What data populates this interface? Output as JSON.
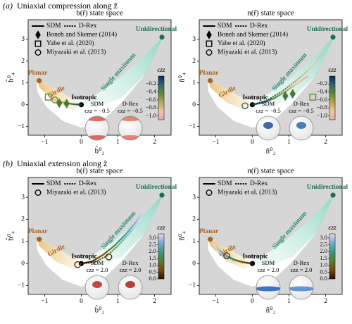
{
  "sections": [
    {
      "label": "(a)",
      "title": "Uniaxial compression along ẑ"
    },
    {
      "label": "(b)",
      "title": "Uniaxial extension along ẑ"
    }
  ],
  "chart_data": [
    {
      "type": "line",
      "title": "b(r̂) state space",
      "xlabel": "b̂⁰₂",
      "ylabel": "b̂⁰₄",
      "xlim": [
        -1.45,
        2.45
      ],
      "ylim": [
        -1.4,
        3.9
      ],
      "xticks": [
        {
          "value": -1,
          "label": "−1"
        },
        0,
        1,
        2
      ],
      "yticks": [
        {
          "value": -1,
          "label": "−1"
        },
        0,
        1,
        2,
        3
      ],
      "series": [
        {
          "name": "SDM",
          "style": "solid",
          "x": [
            0,
            -0.2,
            -0.4,
            -0.6,
            -0.8
          ],
          "values": [
            0,
            0.02,
            0.07,
            0.15,
            0.27
          ]
        },
        {
          "name": "D-Rex",
          "style": "dotted",
          "x": [
            0,
            -0.25,
            -0.5,
            -0.7,
            -0.85
          ],
          "values": [
            0,
            0.04,
            0.11,
            0.2,
            0.32
          ]
        }
      ],
      "markers": [
        {
          "name": "Boneh and Skemer (2014)",
          "symbol": "diamond",
          "filled": true,
          "color": "#4a7a3a",
          "x": [
            -0.6,
            -0.4
          ],
          "values": [
            0.07,
            0.05
          ]
        },
        {
          "name": "Yabe et al. (2020)",
          "symbol": "square",
          "filled": false,
          "color": "#6a8a2a",
          "x": [
            -0.9
          ],
          "values": [
            0.35
          ]
        },
        {
          "name": "Miyazaki et al. (2013)",
          "symbol": "circle",
          "filled": false,
          "color": "#6a8a2a",
          "x": [
            -0.72
          ],
          "values": [
            0.22
          ]
        }
      ],
      "reference_points": {
        "labels": [
          "Planar",
          "Isotropic",
          "Unidirectional"
        ],
        "x": [
          -1.15,
          0,
          2.2
        ],
        "values": [
          1.1,
          0,
          3.1
        ],
        "colors": [
          "#a8641c",
          "#000000",
          "#1d6e5a"
        ]
      },
      "band_labels": [
        "Girdle",
        "Single maximum"
      ],
      "colorbar": {
        "label": "ϵzz",
        "lim": [
          -1.1,
          0
        ],
        "ticks": [
          {
            "value": -1.0,
            "label": "−1.0"
          },
          {
            "value": -0.8,
            "label": "−0.8"
          },
          {
            "value": -0.6,
            "label": "−0.6"
          },
          {
            "value": -0.4,
            "label": "−0.4"
          },
          {
            "value": -0.2,
            "label": "−0.2"
          }
        ],
        "colors": [
          "#f2a3b5",
          "#e8c8a0",
          "#b8a458",
          "#5c8a3a",
          "#2f6a6a",
          "#0d2a5a"
        ]
      },
      "insets": [
        {
          "label": "SDM",
          "strain": "ϵzz = −0.5",
          "pattern": "rim",
          "color": "#d9412f"
        },
        {
          "label": "D-Rex",
          "strain": "ϵzz = −0.5",
          "pattern": "rim",
          "color": "#e0604a"
        }
      ]
    },
    {
      "type": "line",
      "title": "n(r̂) state space",
      "xlabel": "n̂⁰₂",
      "ylabel": "n̂⁰₄",
      "xlim": [
        -1.45,
        2.45
      ],
      "ylim": [
        -1.4,
        3.9
      ],
      "xticks": [
        {
          "value": -1,
          "label": "−1"
        },
        0,
        1,
        2
      ],
      "yticks": [
        {
          "value": -1,
          "label": "−1"
        },
        0,
        1,
        2,
        3
      ],
      "series": [
        {
          "name": "SDM",
          "style": "solid",
          "x": [
            0,
            0.3,
            0.6,
            0.9,
            1.2,
            1.5
          ],
          "values": [
            0,
            0.1,
            0.3,
            0.6,
            0.95,
            1.3
          ]
        },
        {
          "name": "D-Rex",
          "style": "dotted",
          "x": [
            0,
            0.4,
            0.8,
            1.2,
            1.6,
            1.95
          ],
          "values": [
            0,
            0.2,
            0.6,
            1.1,
            1.7,
            2.4
          ]
        }
      ],
      "markers": [
        {
          "name": "Boneh and Skemer (2014)",
          "symbol": "diamond",
          "filled": true,
          "color": "#4a7a3a",
          "x": [
            0.9,
            1.1
          ],
          "values": [
            0.4,
            0.5
          ]
        },
        {
          "name": "Yabe et al. (2020)",
          "symbol": "square",
          "filled": false,
          "color": "#6a8a2a",
          "x": [
            1.65
          ],
          "values": [
            0.35
          ]
        },
        {
          "name": "Miyazaki et al. (2013)",
          "symbol": "circle",
          "filled": false,
          "color": "#3a6a5a",
          "x": [
            -0.2
          ],
          "values": [
            -0.05
          ]
        }
      ],
      "reference_points": {
        "labels": [
          "Planar",
          "Isotropic",
          "Unidirectional"
        ],
        "x": [
          -1.15,
          0,
          2.2
        ],
        "values": [
          1.1,
          0,
          3.1
        ],
        "colors": [
          "#a8641c",
          "#000000",
          "#1d6e5a"
        ]
      },
      "band_labels": [
        "Girdle",
        "Single maximum"
      ],
      "colorbar": {
        "label": "ϵzz",
        "lim": [
          -1.1,
          0
        ],
        "ticks": [
          {
            "value": -1.0,
            "label": "−1.0"
          },
          {
            "value": -0.8,
            "label": "−0.8"
          },
          {
            "value": -0.6,
            "label": "−0.6"
          },
          {
            "value": -0.4,
            "label": "−0.4"
          },
          {
            "value": -0.2,
            "label": "−0.2"
          }
        ],
        "colors": [
          "#f2a3b5",
          "#e8c8a0",
          "#b8a458",
          "#5c8a3a",
          "#2f6a6a",
          "#0d2a5a"
        ]
      },
      "insets": [
        {
          "label": "SDM",
          "strain": "ϵzz = −0.5",
          "pattern": "spot",
          "color": "#1f4f9a"
        },
        {
          "label": "D-Rex",
          "strain": "ϵzz = −0.5",
          "pattern": "spot",
          "color": "#2a66b0"
        }
      ]
    },
    {
      "type": "line",
      "title": "b(r̂) state space",
      "xlabel": "b̂⁰₂",
      "ylabel": "b̂⁰₄",
      "xlim": [
        -1.45,
        2.45
      ],
      "ylim": [
        -1.4,
        3.9
      ],
      "xticks": [
        {
          "value": -1,
          "label": "−1"
        },
        0,
        1,
        2
      ],
      "yticks": [
        {
          "value": -1,
          "label": "−1"
        },
        0,
        1,
        2,
        3
      ],
      "series": [
        {
          "name": "SDM",
          "style": "solid",
          "x": [
            0,
            0.3,
            0.6,
            0.9,
            1.2,
            1.5,
            1.7
          ],
          "values": [
            0,
            0.1,
            0.4,
            0.8,
            1.3,
            1.9,
            2.4
          ]
        },
        {
          "name": "D-Rex",
          "style": "dotted",
          "x": [
            0,
            0.35,
            0.7,
            1.0,
            1.3,
            1.6
          ],
          "values": [
            0,
            0.05,
            0.35,
            0.8,
            1.35,
            1.95
          ]
        }
      ],
      "markers": [
        {
          "name": "Miyazaki et al. (2013)",
          "symbol": "circle",
          "filled": false,
          "color": "#5a2a10",
          "x": [
            -0.1,
            0.75
          ],
          "values": [
            -0.05,
            0.3
          ]
        }
      ],
      "reference_points": {
        "labels": [
          "Planar",
          "Isotropic",
          "Unidirectional"
        ],
        "x": [
          -1.15,
          0,
          2.2
        ],
        "values": [
          1.1,
          0,
          3.1
        ],
        "colors": [
          "#a8641c",
          "#000000",
          "#1d6e5a"
        ]
      },
      "band_labels": [
        "Girdle",
        "Single maximum"
      ],
      "colorbar": {
        "label": "ϵzz",
        "lim": [
          0,
          3.3
        ],
        "ticks": [
          {
            "value": 0,
            "label": "0.0"
          },
          0.5,
          {
            "value": 1,
            "label": "1.0"
          },
          1.5,
          {
            "value": 2,
            "label": "2.0"
          },
          2.5,
          {
            "value": 3,
            "label": "3.0"
          }
        ],
        "colors": [
          "#2a1200",
          "#7a4a10",
          "#5a7a30",
          "#3a9a80",
          "#7aa8d8",
          "#e8d8f0"
        ]
      },
      "insets": [
        {
          "label": "SDM",
          "strain": "ϵzz = 2.0",
          "pattern": "spot",
          "color": "#c0281c"
        },
        {
          "label": "D-Rex",
          "strain": "ϵzz = 2.0",
          "pattern": "spot",
          "color": "#b01c14"
        }
      ]
    },
    {
      "type": "line",
      "title": "n(r̂) state space",
      "xlabel": "n̂⁰₂",
      "ylabel": "n̂⁰₄",
      "xlim": [
        -1.45,
        2.45
      ],
      "ylim": [
        -1.4,
        3.9
      ],
      "xticks": [
        {
          "value": -1,
          "label": "−1"
        },
        0,
        1,
        2
      ],
      "yticks": [
        {
          "value": -1,
          "label": "−1"
        },
        0,
        1,
        2,
        3
      ],
      "series": [
        {
          "name": "SDM",
          "style": "solid",
          "x": [
            0,
            -0.2,
            -0.45,
            -0.7,
            -0.9,
            -1.05
          ],
          "values": [
            0,
            0.05,
            0.15,
            0.35,
            0.6,
            0.85
          ]
        },
        {
          "name": "D-Rex",
          "style": "dotted",
          "x": [
            0,
            -0.25,
            -0.5,
            -0.75,
            -0.95
          ],
          "values": [
            0,
            0.04,
            0.15,
            0.33,
            0.55
          ]
        }
      ],
      "markers": [
        {
          "name": "Miyazaki et al. (2013)",
          "symbol": "circle",
          "filled": false,
          "color": "#5a2a10",
          "x": [
            -0.7
          ],
          "values": [
            0.35
          ]
        }
      ],
      "reference_points": {
        "labels": [
          "Planar",
          "Isotropic",
          "Unidirectional"
        ],
        "x": [
          -1.15,
          0,
          2.2
        ],
        "values": [
          1.1,
          0,
          3.1
        ],
        "colors": [
          "#a8641c",
          "#000000",
          "#1d6e5a"
        ]
      },
      "band_labels": [
        "Girdle",
        "Single maximum"
      ],
      "colorbar": {
        "label": "ϵzz",
        "lim": [
          0,
          3.3
        ],
        "ticks": [
          {
            "value": 0,
            "label": "0.0"
          },
          0.5,
          {
            "value": 1,
            "label": "1.0"
          },
          1.5,
          {
            "value": 2,
            "label": "2.0"
          },
          2.5,
          {
            "value": 3,
            "label": "3.0"
          }
        ],
        "colors": [
          "#2a1200",
          "#7a4a10",
          "#5a7a30",
          "#3a9a80",
          "#7aa8d8",
          "#e8d8f0"
        ]
      },
      "insets": [
        {
          "label": "SDM",
          "strain": "ϵzz = 2.0",
          "pattern": "band",
          "color": "#1f5fae"
        },
        {
          "label": "D-Rex",
          "strain": "ϵzz = 2.0",
          "pattern": "band",
          "color": "#4a86c8"
        }
      ]
    }
  ]
}
